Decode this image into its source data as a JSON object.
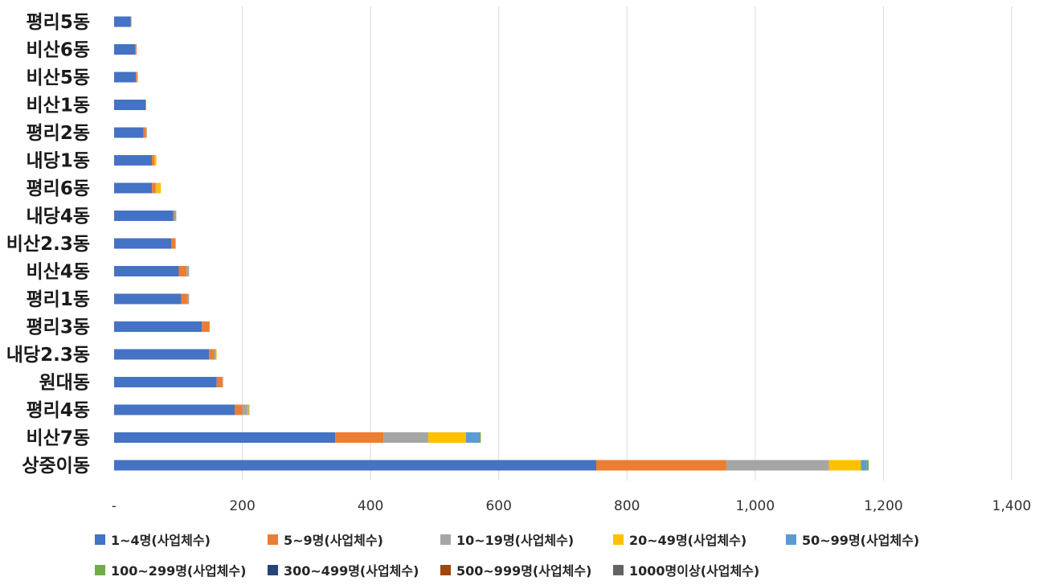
{
  "chart_data": {
    "type": "bar",
    "orientation": "horizontal",
    "stacked": true,
    "title": "",
    "xlabel": "",
    "ylabel": "",
    "xlim": [
      0,
      1400
    ],
    "x_ticks": [
      0,
      200,
      400,
      600,
      800,
      1000,
      1200,
      1400
    ],
    "x_tick_labels": [
      "-",
      "200",
      "400",
      "600",
      "800",
      "1,000",
      "1,200",
      "1,400"
    ],
    "grid": "vertical",
    "legend_position": "bottom",
    "categories": [
      "평리5동",
      "비산6동",
      "비산5동",
      "비산1동",
      "평리2동",
      "내당1동",
      "평리6동",
      "내당4동",
      "비산2.3동",
      "비산4동",
      "평리1동",
      "평리3동",
      "내당2.3동",
      "원대동",
      "평리4동",
      "비산7동",
      "상중이동"
    ],
    "series": [
      {
        "name": "1~4명(사업체수)",
        "color": "#4472C4",
        "values": [
          26,
          33,
          34,
          49,
          46,
          59,
          59,
          92,
          89,
          101,
          105,
          137,
          148,
          160,
          188,
          345,
          752
        ]
      },
      {
        "name": "5~9명(사업체수)",
        "color": "#ED7D31",
        "values": [
          1,
          2,
          2,
          1,
          4,
          4,
          5,
          2,
          7,
          12,
          10,
          12,
          8,
          9,
          12,
          75,
          203
        ]
      },
      {
        "name": "10~19명(사업체수)",
        "color": "#A5A5A5",
        "values": [
          0,
          0,
          1,
          0,
          1,
          0,
          2,
          3,
          0,
          4,
          2,
          0,
          3,
          1,
          8,
          70,
          160
        ]
      },
      {
        "name": "20~49명(사업체수)",
        "color": "#FFC000",
        "values": [
          0,
          0,
          0,
          0,
          0,
          3,
          7,
          0,
          0,
          0,
          0,
          0,
          1,
          0,
          2,
          59,
          50
        ]
      },
      {
        "name": "50~99명(사업체수)",
        "color": "#5B9BD5",
        "values": [
          0,
          0,
          0,
          0,
          0,
          0,
          0,
          0,
          0,
          0,
          0,
          0,
          0,
          0,
          1,
          20,
          9
        ]
      },
      {
        "name": "100~299명(사업체수)",
        "color": "#70AD47",
        "values": [
          0,
          0,
          0,
          0,
          0,
          0,
          0,
          0,
          0,
          0,
          0,
          0,
          0,
          0,
          0,
          3,
          3
        ]
      },
      {
        "name": "300~499명(사업체수)",
        "color": "#264478",
        "values": [
          0,
          0,
          0,
          0,
          0,
          0,
          0,
          0,
          0,
          0,
          0,
          0,
          0,
          0,
          0,
          0,
          0
        ]
      },
      {
        "name": "500~999명(사업체수)",
        "color": "#9E480E",
        "values": [
          0,
          0,
          0,
          0,
          0,
          0,
          0,
          0,
          0,
          0,
          0,
          0,
          0,
          0,
          0,
          0,
          0
        ]
      },
      {
        "name": "1000명이상(사업체수)",
        "color": "#636363",
        "values": [
          0,
          0,
          0,
          0,
          0,
          0,
          0,
          0,
          0,
          0,
          0,
          0,
          0,
          0,
          0,
          0,
          0
        ]
      }
    ]
  }
}
